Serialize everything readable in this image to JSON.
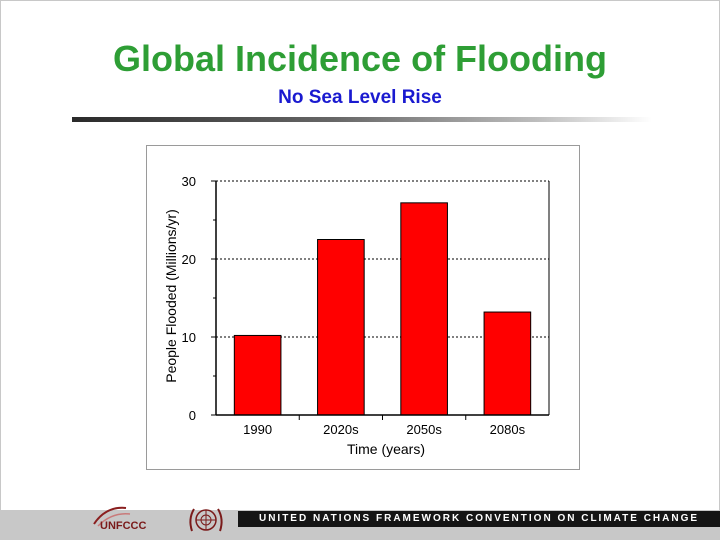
{
  "slide": {
    "title": "Global Incidence of Flooding",
    "subtitle": "No Sea Level Rise",
    "footer_text": "UNITED NATIONS FRAMEWORK CONVENTION ON CLIMATE CHANGE",
    "unfccc_logo_text": "UNFCCC"
  },
  "colors": {
    "title": "#2e9e35",
    "subtitle": "#1a1ad0",
    "bar_fill": "#ff0000",
    "bar_stroke": "#000000"
  },
  "chart_data": {
    "type": "bar",
    "categories": [
      "1990",
      "2020s",
      "2050s",
      "2080s"
    ],
    "values": [
      10.2,
      22.5,
      27.2,
      13.2
    ],
    "xlabel": "Time (years)",
    "ylabel": "People Flooded (Millions/yr)",
    "ylim": [
      0,
      30
    ],
    "yticks": [
      "0",
      "10",
      "20",
      "30"
    ],
    "grid": "horizontal dashed",
    "legend": "none"
  }
}
